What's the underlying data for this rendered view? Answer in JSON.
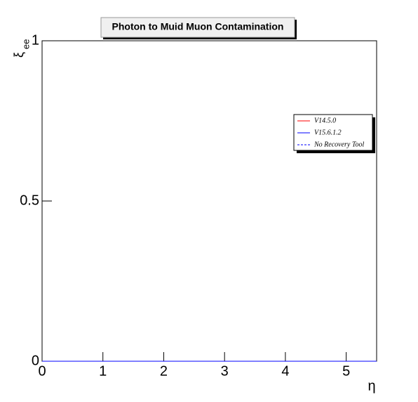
{
  "chart_data": {
    "type": "line",
    "title": "Photon to Muid Muon Contamination",
    "xlabel": "η",
    "ylabel": "ξ",
    "ylabel_subscript": "ee",
    "x": [
      0,
      5.5
    ],
    "series": [
      {
        "name": "V14.5.0",
        "color": "#ff0000",
        "dash": false,
        "values": [
          0,
          0
        ]
      },
      {
        "name": "V15.6.1.2",
        "color": "#0000ff",
        "dash": false,
        "values": [
          0,
          0
        ]
      },
      {
        "name": "No Recovery Tool",
        "color": "#0000ff",
        "dash": true,
        "values": [
          0,
          0
        ]
      }
    ],
    "xlim": [
      0,
      5.5
    ],
    "xticks": [
      0,
      1,
      2,
      3,
      4,
      5
    ],
    "ylim": [
      0,
      1
    ],
    "yticks": [
      0,
      0.5,
      1
    ]
  }
}
